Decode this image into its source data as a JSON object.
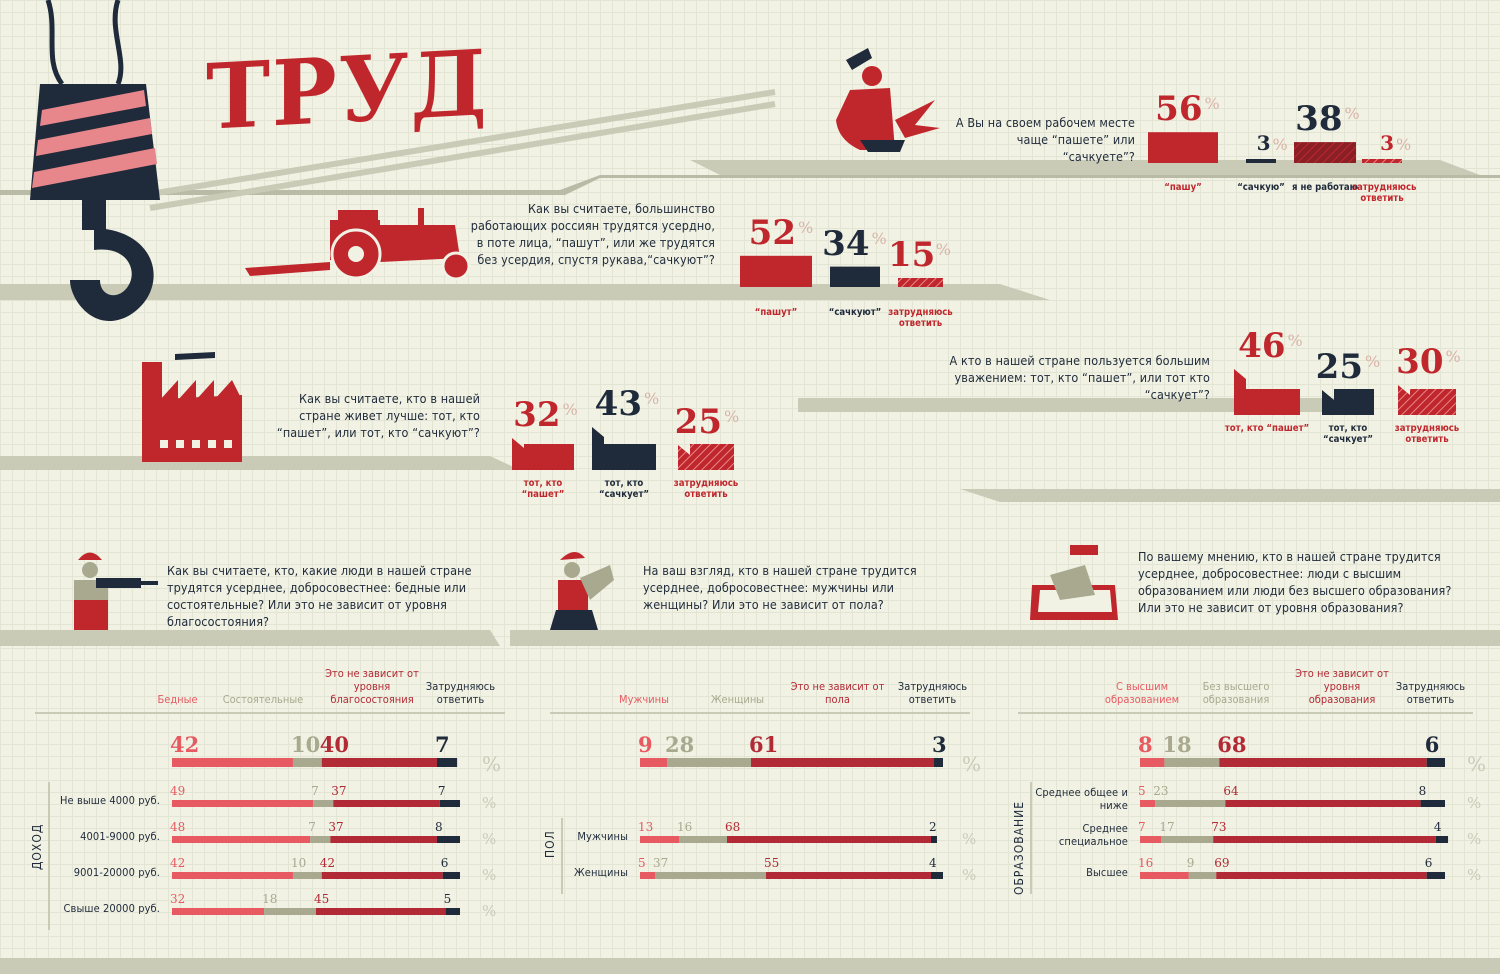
{
  "title": "ТРУД",
  "colors": {
    "red": "#c0272d",
    "navy": "#1f2a3a",
    "light_red": "#e85a62",
    "olive": "#a9a98f",
    "dark_red": "#b22a35",
    "background": "#f1f2e4"
  },
  "icons": [
    "crane-hook-icon",
    "blacksmith-icon",
    "tractor-icon",
    "factory-icon",
    "builder-drill-icon",
    "woman-harvest-icon",
    "hand-writing-icon"
  ],
  "questions": {
    "q1": "А Вы на своем рабочем месте чаще “пашете” или “сачкуете”?",
    "q2": "Как вы считаете, большинство работающих россиян трудятся усердно, в поте лица, “пашут”, или же трудятся без усердия, спустя рукава,“сачкуют”?",
    "q3": "Как вы считаете, кто в нашей стране живет лучше: тот, кто “пашет”, или тот, кто “сачкуют”?",
    "q4": "А кто в нашей стране пользуется большим уважением: тот, кто “пашет”, или тот кто “сачкует”?",
    "q5": "Как вы считаете, кто, какие люди в нашей стране трудятся усерднее, добросовестнее: бедные или состоятельные? Или это не зависит от уровня благосостояния?",
    "q6": "На ваш взгляд, кто в нашей стране трудится усерднее, добросовестнее: мужчины или женщины? Или это не зависит от пола?",
    "q7": "По вашему мнению, кто в нашей стране трудится усерднее, добросовестнее: люди с высшим образованием или люди без высшего образования? Или это не зависит от уровня образования?"
  },
  "chart_data": [
    {
      "type": "bar",
      "id": "q1",
      "unit": "%",
      "categories": [
        "“пашу”",
        "“сачкую”",
        "я не работаю",
        "затрудняюсь ответить"
      ],
      "values": [
        56,
        3,
        38,
        3
      ]
    },
    {
      "type": "bar",
      "id": "q2",
      "unit": "%",
      "categories": [
        "“пашут”",
        "“сачкуют”",
        "затрудняюсь ответить"
      ],
      "values": [
        52,
        34,
        15
      ]
    },
    {
      "type": "bar",
      "id": "q3",
      "unit": "%",
      "categories": [
        "тот, кто “пашет”",
        "тот, кто “сачкует”",
        "затрудняюсь ответить"
      ],
      "values": [
        32,
        43,
        25
      ]
    },
    {
      "type": "bar",
      "id": "q4",
      "unit": "%",
      "categories": [
        "тот, кто “пашет”",
        "тот, кто “сачкует”",
        "затрудняюсь ответить"
      ],
      "values": [
        46,
        25,
        30
      ]
    },
    {
      "type": "bar",
      "id": "income",
      "stacked": true,
      "unit": "%",
      "section": "доход",
      "legend": [
        "Бедные",
        "Состоятельные",
        "Это не зависит от уровня благосостояния",
        "Затрудняюсь ответить"
      ],
      "total": [
        42,
        10,
        40,
        7
      ],
      "rows": [
        {
          "label": "Не выше 4000 руб.",
          "values": [
            49,
            7,
            37,
            7
          ]
        },
        {
          "label": "4001-9000 руб.",
          "values": [
            48,
            7,
            37,
            8
          ]
        },
        {
          "label": "9001-20000 руб.",
          "values": [
            42,
            10,
            42,
            6
          ]
        },
        {
          "label": "Свыше 20000 руб.",
          "values": [
            32,
            18,
            45,
            5
          ]
        }
      ]
    },
    {
      "type": "bar",
      "id": "gender",
      "stacked": true,
      "unit": "%",
      "section": "пол",
      "legend": [
        "Мужчины",
        "Женщины",
        "Это не зависит от пола",
        "Затрудняюсь ответить"
      ],
      "total": [
        9,
        28,
        61,
        3
      ],
      "rows": [
        {
          "label": "Мужчины",
          "values": [
            13,
            16,
            68,
            2
          ]
        },
        {
          "label": "Женщины",
          "values": [
            5,
            37,
            55,
            4
          ]
        }
      ]
    },
    {
      "type": "bar",
      "id": "education",
      "stacked": true,
      "unit": "%",
      "section": "образование",
      "legend": [
        "С высшим образованием",
        "Без высшего образования",
        "Это не зависит от уровня образования",
        "Затрудняюсь ответить"
      ],
      "total": [
        8,
        18,
        68,
        6
      ],
      "rows": [
        {
          "label": "Среднее общее и ниже",
          "values": [
            5,
            23,
            64,
            8
          ]
        },
        {
          "label": "Среднее специальное",
          "values": [
            7,
            17,
            73,
            4
          ]
        },
        {
          "label": "Высшее",
          "values": [
            16,
            9,
            69,
            6
          ]
        }
      ]
    }
  ]
}
